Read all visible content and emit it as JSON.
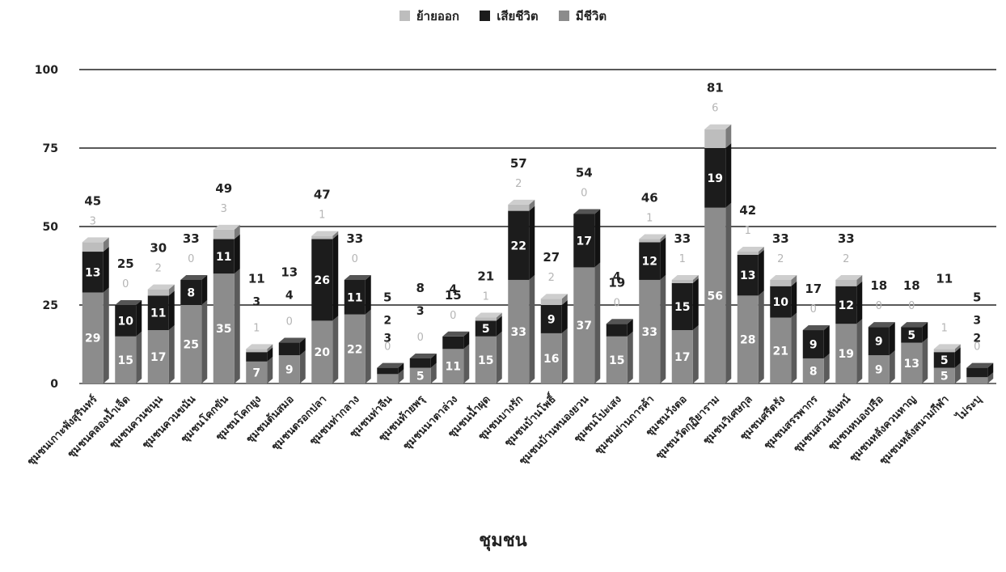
{
  "chart_data": {
    "type": "bar",
    "stacked": true,
    "xlabel": "ชุมชน",
    "ylim": [
      0,
      100
    ],
    "yticks": [
      0,
      25,
      50,
      75,
      100
    ],
    "grid": true,
    "legend_position": "top",
    "categories": [
      "ชุมชนเกาะพังสุรินทร์",
      "ชุมชนคลองน้ำเจ็ด",
      "ชุมชนควนขนุน",
      "ชุมชนควนขนัน",
      "ชุมชนโคกขัน",
      "ชุมชนโคกยูง",
      "ชุมชนต้นสมอ",
      "ชุมชนตรอกปลา",
      "ชุมชนท่ากลาง",
      "ชุมชนท่าจีน",
      "ชุมชนท้ายพรุ",
      "ชุมชนนาตาล่วง",
      "ชุมชนน้ำผุด",
      "ชุมชนบางรัก",
      "ชุมชนบ้านโพธิ์",
      "ชุมชนบ้านหนองยวน",
      "ชุมชนโปะเสง",
      "ชุมชนย่านการค้า",
      "ชุมชนวังตอ",
      "ชุมชนวัดกุฏิยาราม",
      "ชุมชนวิเศษกุล",
      "ชุมชนศรีตรัง",
      "ชุมชนสรรพากร",
      "ชุมชนสวนจันทน์",
      "ชุมชนหนองปรือ",
      "ชุมชนหลังควนหาญ",
      "ชุมชนหลังสนามกีฬา",
      "ไม่ระบุ"
    ],
    "series": [
      {
        "name": "มีชีวิต",
        "color": "#8c8c8c",
        "values": [
          29,
          15,
          17,
          25,
          35,
          7,
          9,
          20,
          22,
          3,
          5,
          11,
          15,
          33,
          16,
          37,
          15,
          33,
          17,
          56,
          28,
          21,
          8,
          19,
          9,
          13,
          5,
          2
        ]
      },
      {
        "name": "เสียชีวิต",
        "color": "#1c1c1c",
        "values": [
          13,
          10,
          11,
          8,
          11,
          3,
          4,
          26,
          11,
          2,
          3,
          4,
          5,
          22,
          9,
          17,
          4,
          12,
          15,
          19,
          13,
          10,
          9,
          12,
          9,
          5,
          5,
          3
        ]
      },
      {
        "name": "ย้ายออก",
        "color": "#bdbdbd",
        "values": [
          3,
          0,
          2,
          0,
          3,
          1,
          0,
          1,
          0,
          0,
          0,
          0,
          1,
          2,
          2,
          0,
          0,
          1,
          1,
          6,
          1,
          2,
          0,
          2,
          0,
          0,
          1,
          0
        ]
      }
    ],
    "totals": [
      45,
      25,
      30,
      33,
      49,
      11,
      13,
      47,
      33,
      5,
      8,
      15,
      21,
      57,
      27,
      54,
      19,
      46,
      33,
      81,
      42,
      33,
      17,
      33,
      18,
      18,
      11,
      5
    ]
  },
  "legend": {
    "items": [
      {
        "label": "ย้ายออก",
        "color": "#bdbdbd"
      },
      {
        "label": "เสียชีวิต",
        "color": "#1c1c1c"
      },
      {
        "label": "มีชีวิต",
        "color": "#8c8c8c"
      }
    ]
  }
}
